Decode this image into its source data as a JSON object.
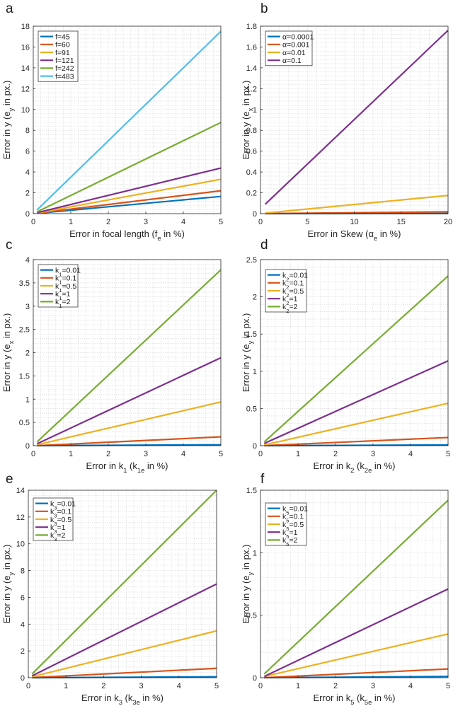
{
  "chart_data": [
    {
      "type": "line",
      "panel_letter": "a",
      "xlabel": {
        "main": "Error in focal length (f",
        "sub": "e",
        "tail": " in %)"
      },
      "ylabel": {
        "main": "Error in y (e",
        "sub": "y",
        "tail": " in px.)"
      },
      "xlim": [
        0,
        5
      ],
      "ylim": [
        0,
        18
      ],
      "xticks": [
        0,
        1,
        2,
        3,
        4,
        5
      ],
      "yticks": [
        0,
        2,
        4,
        6,
        8,
        10,
        12,
        14,
        16,
        18
      ],
      "ytick_labels": [
        "0",
        "2",
        "4",
        "6",
        "8",
        "10",
        "12",
        "14",
        "16",
        "18"
      ],
      "legend_position": "top-left",
      "series": [
        {
          "name": "f=45",
          "label": {
            "main": "f=45"
          },
          "color": "#0072BD",
          "x": [
            0.1,
            5
          ],
          "y": [
            0.03,
            1.65
          ]
        },
        {
          "name": "f=60",
          "label": {
            "main": "f=60"
          },
          "color": "#D95319",
          "x": [
            0.1,
            5
          ],
          "y": [
            0.04,
            2.2
          ]
        },
        {
          "name": "f=91",
          "label": {
            "main": "f=91"
          },
          "color": "#EDB120",
          "x": [
            0.1,
            5
          ],
          "y": [
            0.06,
            3.3
          ]
        },
        {
          "name": "f=121",
          "label": {
            "main": "f=121"
          },
          "color": "#7E2F8E",
          "x": [
            0.1,
            5
          ],
          "y": [
            0.09,
            4.38
          ]
        },
        {
          "name": "f=242",
          "label": {
            "main": "f=242"
          },
          "color": "#77AC30",
          "x": [
            0.1,
            5
          ],
          "y": [
            0.17,
            8.75
          ]
        },
        {
          "name": "f=483",
          "label": {
            "main": "f=483"
          },
          "color": "#4DBEEE",
          "x": [
            0.1,
            5
          ],
          "y": [
            0.35,
            17.5
          ]
        }
      ]
    },
    {
      "type": "line",
      "panel_letter": "b",
      "xlabel": {
        "main": "Error in Skew (α",
        "sub": "e",
        "tail": " in %)"
      },
      "ylabel": {
        "main": "Error in y (e",
        "sub": "x",
        "tail": " in px.)"
      },
      "xlim": [
        0,
        20
      ],
      "ylim": [
        0,
        1.8
      ],
      "xticks": [
        0,
        5,
        10,
        15,
        20
      ],
      "yticks": [
        0,
        0.2,
        0.4,
        0.6,
        0.8,
        1,
        1.2,
        1.4,
        1.6,
        1.8
      ],
      "ytick_labels": [
        "0",
        "0.2",
        "0.4",
        "0.6",
        "0.8",
        "1",
        "1.2",
        "1.4",
        "1.6",
        "1.8"
      ],
      "legend_position": "top-left",
      "series": [
        {
          "name": "α=0.0001",
          "label": {
            "main": "α=0.0001"
          },
          "color": "#0072BD",
          "x": [
            0.5,
            20
          ],
          "y": [
            0.0,
            0.0018
          ]
        },
        {
          "name": "α=0.001",
          "label": {
            "main": "α=0.001"
          },
          "color": "#D95319",
          "x": [
            0.5,
            20
          ],
          "y": [
            0.0005,
            0.018
          ]
        },
        {
          "name": "α=0.01",
          "label": {
            "main": "α=0.01"
          },
          "color": "#EDB120",
          "x": [
            0.5,
            20
          ],
          "y": [
            0.005,
            0.175
          ]
        },
        {
          "name": "α=0.1",
          "label": {
            "main": "α=0.1"
          },
          "color": "#7E2F8E",
          "x": [
            0.5,
            20
          ],
          "y": [
            0.09,
            1.76
          ]
        }
      ]
    },
    {
      "type": "line",
      "panel_letter": "c",
      "xlabel": {
        "main": "Error in k",
        "sub": "1",
        "mid": " (k",
        "sub2": "1e",
        "tail": " in %)"
      },
      "ylabel": {
        "main": "Error in y (e",
        "sub": "x",
        "tail": " in px.)"
      },
      "xlim": [
        0,
        5
      ],
      "ylim": [
        0,
        4
      ],
      "xticks": [
        0,
        1,
        2,
        3,
        4,
        5
      ],
      "yticks": [
        0,
        0.5,
        1,
        1.5,
        2,
        2.5,
        3,
        3.5,
        4
      ],
      "ytick_labels": [
        "0",
        "0.5",
        "1",
        "1.5",
        "2",
        "2.5",
        "3",
        "3.5",
        "4"
      ],
      "legend_position": "top-left",
      "series": [
        {
          "name": "k1=0.01",
          "label": {
            "main": "k",
            "sub": "1",
            "tail": "=0.01"
          },
          "color": "#0072BD",
          "x": [
            0.1,
            5
          ],
          "y": [
            0.0,
            0.02
          ]
        },
        {
          "name": "k1=0.1",
          "label": {
            "main": "k",
            "sub": "1",
            "tail": "=0.1"
          },
          "color": "#D95319",
          "x": [
            0.1,
            5
          ],
          "y": [
            0.0,
            0.19
          ]
        },
        {
          "name": "k1=0.5",
          "label": {
            "main": "k",
            "sub": "1",
            "tail": "=0.5"
          },
          "color": "#EDB120",
          "x": [
            0.1,
            5
          ],
          "y": [
            0.02,
            0.94
          ]
        },
        {
          "name": "k1=1",
          "label": {
            "main": "k",
            "sub": "1",
            "tail": "=1"
          },
          "color": "#7E2F8E",
          "x": [
            0.1,
            5
          ],
          "y": [
            0.04,
            1.89
          ]
        },
        {
          "name": "k1=2",
          "label": {
            "main": "k",
            "sub": "1",
            "tail": "=2"
          },
          "color": "#77AC30",
          "x": [
            0.1,
            5
          ],
          "y": [
            0.08,
            3.78
          ]
        }
      ]
    },
    {
      "type": "line",
      "panel_letter": "d",
      "xlabel": {
        "main": "Error in k",
        "sub": "2",
        "mid": " (k",
        "sub2": "2e",
        "tail": " in %)"
      },
      "ylabel": {
        "main": "Error in y (e",
        "sub": "y",
        "tail": " in px.)"
      },
      "xlim": [
        0,
        5
      ],
      "ylim": [
        0,
        2.5
      ],
      "xticks": [
        0,
        1,
        2,
        3,
        4,
        5
      ],
      "yticks": [
        0,
        0.5,
        1,
        1.5,
        2,
        2.5
      ],
      "ytick_labels": [
        "0",
        "0.5",
        "1",
        "1.5",
        "2",
        "2.5"
      ],
      "legend_position": "top-left",
      "series": [
        {
          "name": "k2=0.01",
          "label": {
            "main": "k",
            "sub": "2",
            "tail": "=0.01"
          },
          "color": "#0072BD",
          "x": [
            0.1,
            5
          ],
          "y": [
            0.0,
            0.01
          ]
        },
        {
          "name": "k2=0.1",
          "label": {
            "main": "k",
            "sub": "2",
            "tail": "=0.1"
          },
          "color": "#D95319",
          "x": [
            0.1,
            5
          ],
          "y": [
            0.0,
            0.11
          ]
        },
        {
          "name": "k2=0.5",
          "label": {
            "main": "k",
            "sub": "2",
            "tail": "=0.5"
          },
          "color": "#EDB120",
          "x": [
            0.1,
            5
          ],
          "y": [
            0.01,
            0.57
          ]
        },
        {
          "name": "k2=1",
          "label": {
            "main": "k",
            "sub": "2",
            "tail": "=1"
          },
          "color": "#7E2F8E",
          "x": [
            0.1,
            5
          ],
          "y": [
            0.03,
            1.14
          ]
        },
        {
          "name": "k2=2",
          "label": {
            "main": "k",
            "sub": "2",
            "tail": "=2"
          },
          "color": "#77AC30",
          "x": [
            0.1,
            5
          ],
          "y": [
            0.05,
            2.28
          ]
        }
      ]
    },
    {
      "type": "line",
      "panel_letter": "e",
      "xlabel": {
        "main": "Error in k",
        "sub": "3",
        "mid": " (k",
        "sub2": "3e",
        "tail": " in %)"
      },
      "ylabel": {
        "main": "Error in y (e",
        "sub": "y",
        "tail": " in px.)"
      },
      "xlim": [
        0,
        5
      ],
      "ylim": [
        0,
        14
      ],
      "xticks": [
        0,
        1,
        2,
        3,
        4,
        5
      ],
      "yticks": [
        0,
        2,
        4,
        6,
        8,
        10,
        12,
        14
      ],
      "ytick_labels": [
        "0",
        "2",
        "4",
        "6",
        "8",
        "10",
        "12",
        "14"
      ],
      "legend_position": "top-left",
      "series": [
        {
          "name": "k3=0.01",
          "label": {
            "main": "k",
            "sub": "3",
            "tail": "=0.01"
          },
          "color": "#0072BD",
          "x": [
            0.1,
            5
          ],
          "y": [
            0.0,
            0.07
          ]
        },
        {
          "name": "k3=0.1",
          "label": {
            "main": "k",
            "sub": "3",
            "tail": "=0.1"
          },
          "color": "#D95319",
          "x": [
            0.1,
            5
          ],
          "y": [
            0.01,
            0.7
          ]
        },
        {
          "name": "k3=0.5",
          "label": {
            "main": "k",
            "sub": "3",
            "tail": "=0.5"
          },
          "color": "#EDB120",
          "x": [
            0.1,
            5
          ],
          "y": [
            0.07,
            3.5
          ]
        },
        {
          "name": "k3=1",
          "label": {
            "main": "k",
            "sub": "3",
            "tail": "=1"
          },
          "color": "#7E2F8E",
          "x": [
            0.1,
            5
          ],
          "y": [
            0.14,
            7.0
          ]
        },
        {
          "name": "k3=2",
          "label": {
            "main": "k",
            "sub": "3",
            "tail": "=2"
          },
          "color": "#77AC30",
          "x": [
            0.1,
            5
          ],
          "y": [
            0.28,
            14.0
          ]
        }
      ]
    },
    {
      "type": "line",
      "panel_letter": "f",
      "xlabel": {
        "main": "Error in k",
        "sub": "5",
        "mid": " (k",
        "sub2": "5e",
        "tail": " in %)"
      },
      "ylabel": {
        "main": "Error in y (e",
        "sub": "y",
        "tail": " in px.)"
      },
      "xlim": [
        0,
        5
      ],
      "ylim": [
        0,
        1.5
      ],
      "xticks": [
        0,
        1,
        2,
        3,
        4,
        5
      ],
      "yticks": [
        0,
        0.5,
        1,
        1.5
      ],
      "ytick_labels": [
        "0",
        "0.5",
        "1",
        "1.5"
      ],
      "legend_position": "top-left",
      "series": [
        {
          "name": "k5=0.01",
          "label": {
            "main": "k",
            "sub": "5",
            "tail": "=0.01"
          },
          "color": "#0072BD",
          "x": [
            0.1,
            5
          ],
          "y": [
            0.0,
            0.01
          ]
        },
        {
          "name": "k5=0.1",
          "label": {
            "main": "k",
            "sub": "5",
            "tail": "=0.1"
          },
          "color": "#D95319",
          "x": [
            0.1,
            5
          ],
          "y": [
            0.0,
            0.07
          ]
        },
        {
          "name": "k5=0.5",
          "label": {
            "main": "k",
            "sub": "5",
            "tail": "=0.5"
          },
          "color": "#EDB120",
          "x": [
            0.1,
            5
          ],
          "y": [
            0.01,
            0.35
          ]
        },
        {
          "name": "k5=1",
          "label": {
            "main": "k",
            "sub": "5",
            "tail": "=1"
          },
          "color": "#7E2F8E",
          "x": [
            0.1,
            5
          ],
          "y": [
            0.01,
            0.71
          ]
        },
        {
          "name": "k5=2",
          "label": {
            "main": "k",
            "sub": "5",
            "tail": "=2"
          },
          "color": "#77AC30",
          "x": [
            0.1,
            5
          ],
          "y": [
            0.03,
            1.42
          ]
        }
      ]
    }
  ]
}
